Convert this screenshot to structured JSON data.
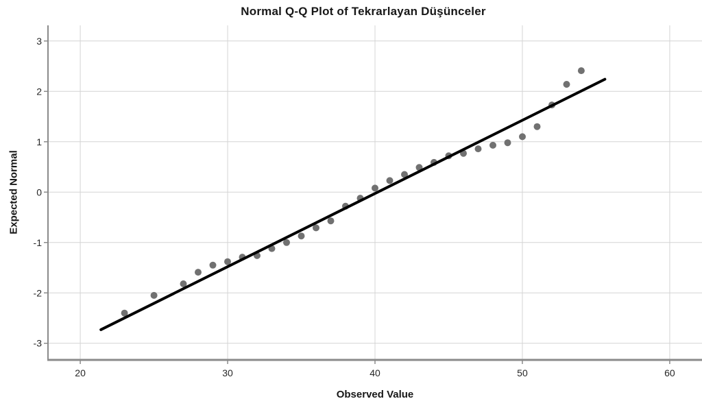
{
  "chart_data": {
    "type": "scatter",
    "subtype": "normal-qq-plot",
    "title": "Normal Q-Q Plot of Tekrarlayan Düşünceler",
    "xlabel": "Observed Value",
    "ylabel": "Expected Normal",
    "x_ticks": [
      20,
      30,
      40,
      50,
      60
    ],
    "y_ticks": [
      3,
      2,
      1,
      0,
      -1,
      -2,
      -3
    ],
    "xlim": [
      17.81,
      62.19
    ],
    "ylim": [
      -3.33,
      3.31
    ],
    "grid": true,
    "legend": false,
    "points": [
      [
        23,
        -2.4
      ],
      [
        25,
        -2.05
      ],
      [
        27,
        -1.82
      ],
      [
        28,
        -1.59
      ],
      [
        29,
        -1.45
      ],
      [
        30,
        -1.38
      ],
      [
        31,
        -1.29
      ],
      [
        32,
        -1.26
      ],
      [
        33,
        -1.12
      ],
      [
        34,
        -1.0
      ],
      [
        35,
        -0.87
      ],
      [
        36,
        -0.71
      ],
      [
        37,
        -0.57
      ],
      [
        38,
        -0.28
      ],
      [
        39,
        -0.12
      ],
      [
        40,
        0.08
      ],
      [
        41,
        0.23
      ],
      [
        42,
        0.35
      ],
      [
        43,
        0.49
      ],
      [
        44,
        0.59
      ],
      [
        45,
        0.72
      ],
      [
        46,
        0.77
      ],
      [
        47,
        0.86
      ],
      [
        48,
        0.93
      ],
      [
        49,
        0.98
      ],
      [
        50,
        1.1
      ],
      [
        51,
        1.3
      ],
      [
        52,
        1.73
      ],
      [
        53,
        2.14
      ],
      [
        54,
        2.41
      ]
    ],
    "fit_line": {
      "x1": 21.4,
      "y1": -2.73,
      "x2": 55.6,
      "y2": 2.24
    },
    "marker_radius": 5,
    "colors": {
      "point": "#717171",
      "line": "#000000",
      "grid": "#d4d4d4",
      "axis": "#8a8a8a",
      "text": "#262626"
    }
  }
}
